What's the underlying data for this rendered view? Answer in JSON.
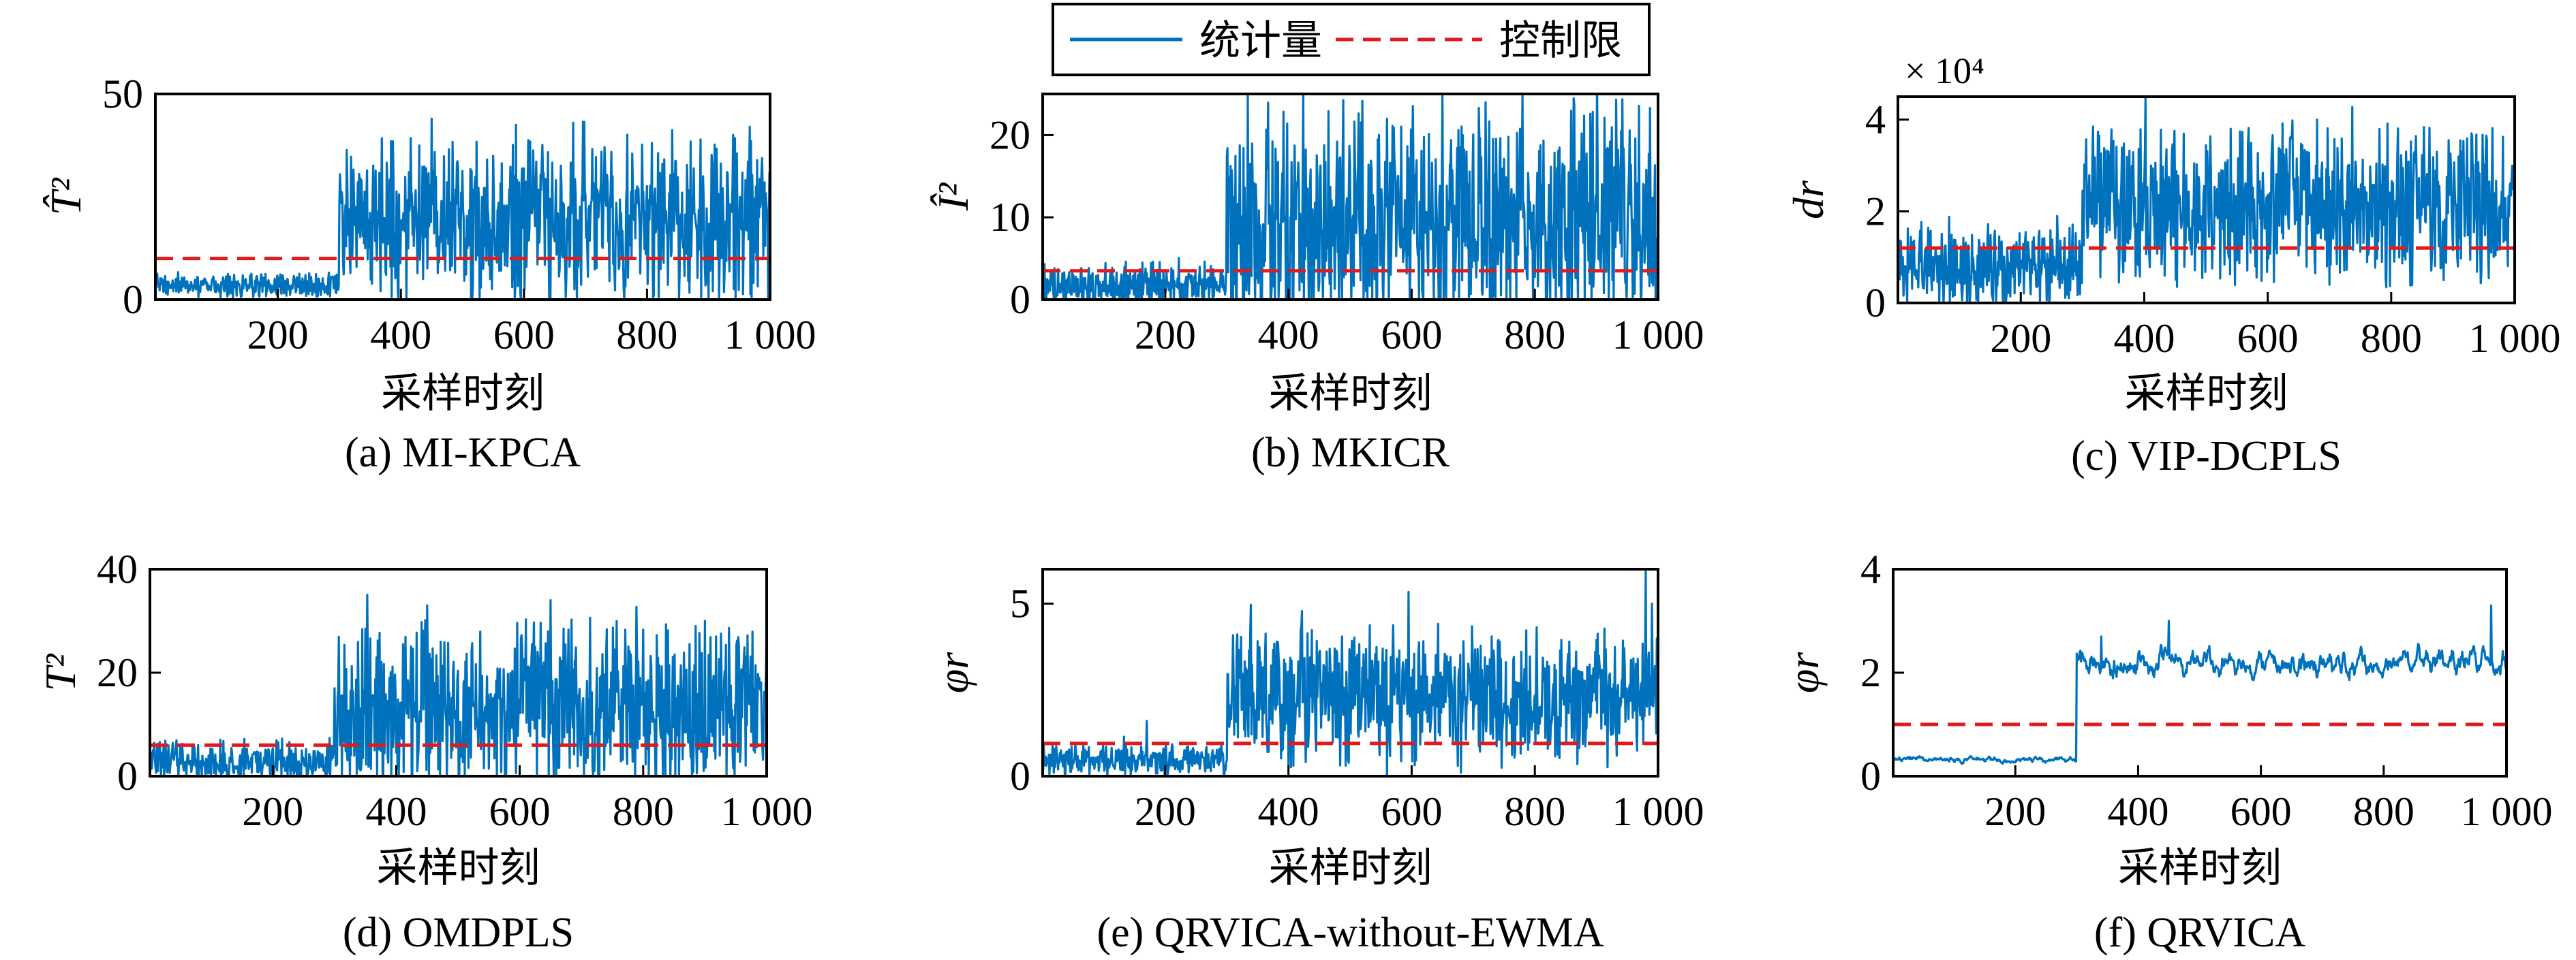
{
  "colors": {
    "series": "#0072BD",
    "limit": "#E31A1C"
  },
  "legend": {
    "series_label": "统计量",
    "limit_label": "控制限"
  },
  "chart_data": [
    {
      "id": "a",
      "type": "line",
      "caption": "(a) MI-KPCA",
      "ylabel": "T̂²",
      "xlabel": "采样时刻",
      "xlim": [
        1,
        1000
      ],
      "ylim": [
        0,
        50
      ],
      "xticks": [
        200,
        400,
        600,
        800,
        1000
      ],
      "xtick_labels": [
        "200",
        "400",
        "600",
        "800",
        "1 000"
      ],
      "yticks": [
        0,
        50
      ],
      "ytick_labels": [
        "0",
        "50"
      ],
      "multiplier": "",
      "control_limit": 10,
      "segments": [
        {
          "from": 1,
          "to": 300,
          "mean": 3.5,
          "spread": 3.5,
          "smooth": 0
        },
        {
          "from": 300,
          "to": 1000,
          "mean": 20,
          "spread": 24,
          "smooth": 0
        }
      ],
      "peaks": [
        [
          450,
          44
        ],
        [
          680,
          43
        ],
        [
          940,
          40
        ]
      ]
    },
    {
      "id": "b",
      "type": "line",
      "caption": "(b) MKICR",
      "ylabel": "Î²",
      "xlabel": "采样时刻",
      "xlim": [
        1,
        1000
      ],
      "ylim": [
        0,
        25
      ],
      "xticks": [
        200,
        400,
        600,
        800,
        1000
      ],
      "xtick_labels": [
        "200",
        "400",
        "600",
        "800",
        "1 000"
      ],
      "yticks": [
        0,
        10,
        20
      ],
      "ytick_labels": [
        "0",
        "10",
        "20"
      ],
      "multiplier": "",
      "control_limit": 3.5,
      "segments": [
        {
          "from": 1,
          "to": 300,
          "mean": 1.6,
          "spread": 3.4,
          "smooth": 0
        },
        {
          "from": 300,
          "to": 1000,
          "mean": 9,
          "spread": 17,
          "smooth": 0
        }
      ],
      "peaks": [
        [
          650,
          25
        ],
        [
          720,
          24
        ],
        [
          560,
          22
        ]
      ]
    },
    {
      "id": "c",
      "type": "line",
      "caption": "(c) VIP-DCPLS",
      "ylabel": "dr",
      "xlabel": "采样时刻",
      "xlim": [
        1,
        1000
      ],
      "ylim": [
        0,
        4.5
      ],
      "xticks": [
        200,
        400,
        600,
        800,
        1000
      ],
      "xtick_labels": [
        "200",
        "400",
        "600",
        "800",
        "1 000"
      ],
      "yticks": [
        0,
        2,
        4
      ],
      "ytick_labels": [
        "0",
        "2",
        "4"
      ],
      "multiplier": "× 10⁴",
      "control_limit": 1.2,
      "segments": [
        {
          "from": 1,
          "to": 300,
          "mean": 0.75,
          "spread": 1.1,
          "smooth": 0
        },
        {
          "from": 300,
          "to": 1000,
          "mean": 2.1,
          "spread": 2.0,
          "smooth": 0
        }
      ],
      "peaks": [
        [
          680,
          4.0
        ],
        [
          540,
          3.8
        ],
        [
          930,
          3.7
        ]
      ]
    },
    {
      "id": "d",
      "type": "line",
      "caption": "(d) OMDPLS",
      "ylabel": "T²",
      "xlabel": "采样时刻",
      "xlim": [
        1,
        1000
      ],
      "ylim": [
        0,
        40
      ],
      "xticks": [
        200,
        400,
        600,
        800,
        1000
      ],
      "xtick_labels": [
        "200",
        "400",
        "600",
        "800",
        "1 000"
      ],
      "yticks": [
        0,
        20,
        40
      ],
      "ytick_labels": [
        "0",
        "20",
        "40"
      ],
      "multiplier": "",
      "control_limit": 6,
      "segments": [
        {
          "from": 1,
          "to": 300,
          "mean": 2.6,
          "spread": 5,
          "smooth": 0
        },
        {
          "from": 300,
          "to": 1000,
          "mean": 13,
          "spread": 20,
          "smooth": 0
        }
      ],
      "peaks": [
        [
          650,
          34
        ],
        [
          450,
          33
        ],
        [
          900,
          30
        ]
      ]
    },
    {
      "id": "e",
      "type": "line",
      "caption": "(e) QRVICA-without-EWMA",
      "ylabel": "φr",
      "xlabel": "采样时刻",
      "xlim": [
        1,
        1000
      ],
      "ylim": [
        0,
        6
      ],
      "xticks": [
        200,
        400,
        600,
        800,
        1000
      ],
      "xtick_labels": [
        "200",
        "400",
        "600",
        "800",
        "1 000"
      ],
      "yticks": [
        0,
        5
      ],
      "ytick_labels": [
        "0",
        "5"
      ],
      "multiplier": "",
      "control_limit": 0.95,
      "segments": [
        {
          "from": 1,
          "to": 300,
          "mean": 0.45,
          "spread": 0.55,
          "smooth": 0
        },
        {
          "from": 300,
          "to": 1000,
          "mean": 2.3,
          "spread": 2.3,
          "smooth": 0
        }
      ],
      "peaks": [
        [
          980,
          6.0
        ],
        [
          990,
          5.0
        ],
        [
          170,
          1.6
        ]
      ]
    },
    {
      "id": "f",
      "type": "line",
      "caption": "(f) QRVICA",
      "ylabel": "φr",
      "xlabel": "采样时刻",
      "xlim": [
        1,
        1000
      ],
      "ylim": [
        0,
        4
      ],
      "xticks": [
        200,
        400,
        600,
        800,
        1000
      ],
      "xtick_labels": [
        "200",
        "400",
        "600",
        "800",
        "1 000"
      ],
      "yticks": [
        0,
        2,
        4
      ],
      "ytick_labels": [
        "0",
        "2",
        "4"
      ],
      "multiplier": "",
      "control_limit": 1.0,
      "segments": [
        {
          "from": 1,
          "to": 300,
          "mean": 0.32,
          "spread": 0.12,
          "smooth": 0.8
        },
        {
          "from": 300,
          "to": 1000,
          "mean": 2.2,
          "spread": 0.55,
          "smooth": 0.8
        }
      ],
      "peaks": [
        [
          975,
          3.3
        ],
        [
          450,
          3.0
        ],
        [
          340,
          2.7
        ]
      ]
    }
  ]
}
